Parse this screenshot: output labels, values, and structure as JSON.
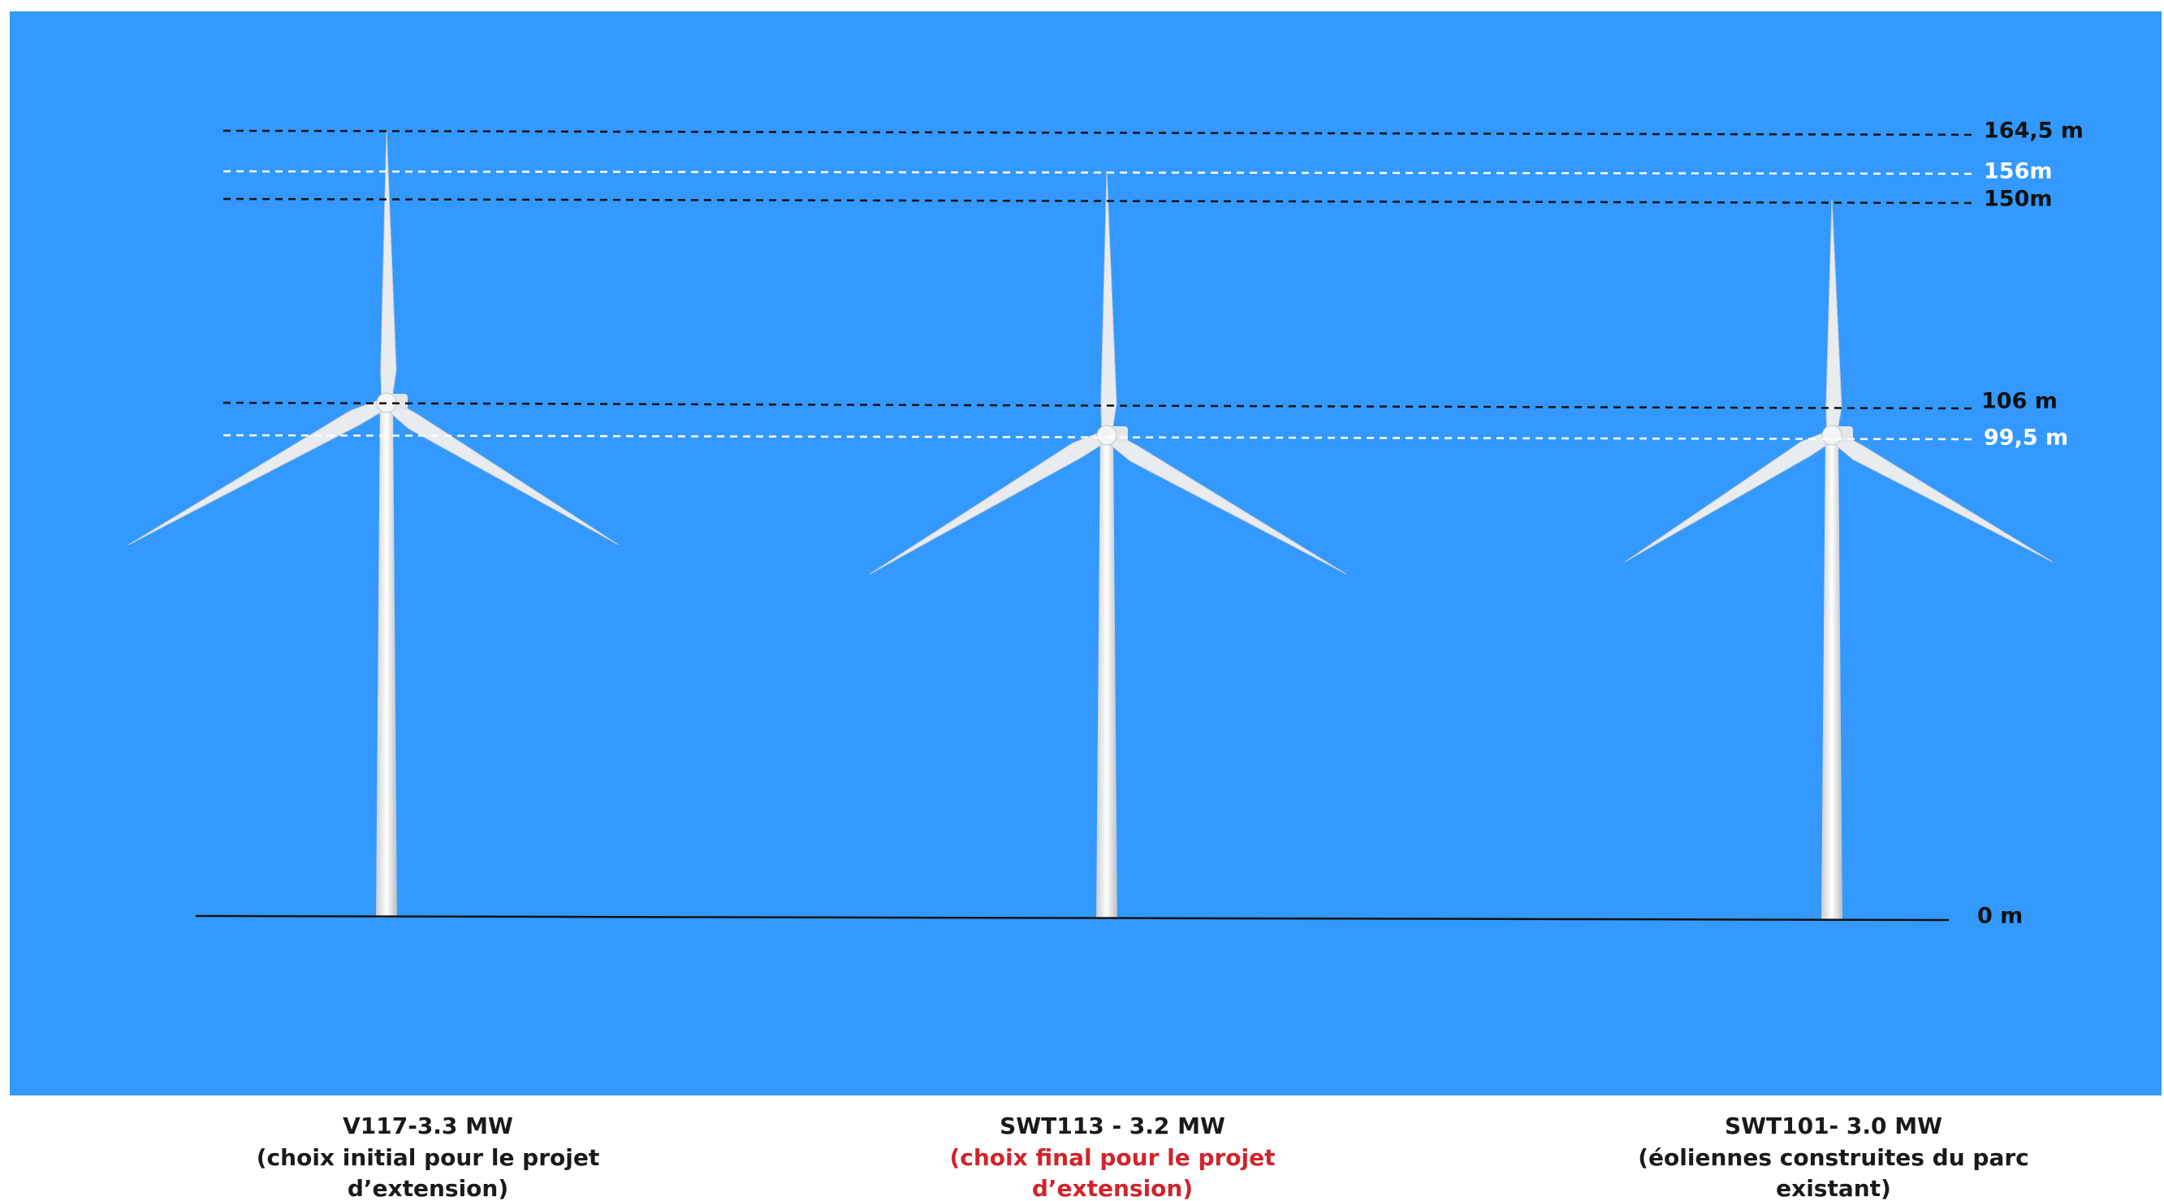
{
  "levels": [
    "164,5 m",
    "156m",
    "150m",
    "106 m",
    "99,5 m",
    "0 m"
  ],
  "turbines": [
    {
      "name": "V117-3.3 MW",
      "caption": [
        "(choix initial pour le projet",
        "d’extension)"
      ]
    },
    {
      "name": "SWT113 - 3.2 MW",
      "caption": [
        "(choix final pour le projet",
        "d’extension)"
      ]
    },
    {
      "name": "SWT101- 3.0 MW",
      "caption": [
        "(éoliennes construites du parc",
        "existant)"
      ]
    }
  ]
}
